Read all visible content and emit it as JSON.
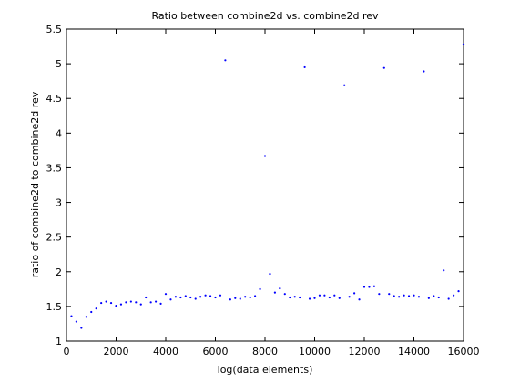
{
  "chart_data": {
    "type": "scatter",
    "title": "Ratio between combine2d vs. combine2d rev",
    "xlabel": "log(data elements)",
    "ylabel": "ratio of combine2d to combine2d rev",
    "xlim": [
      0,
      16000
    ],
    "ylim": [
      1,
      5.5
    ],
    "xticks": [
      0,
      2000,
      4000,
      6000,
      8000,
      10000,
      12000,
      14000,
      16000
    ],
    "yticks": [
      1,
      1.5,
      2,
      2.5,
      3,
      3.5,
      4,
      4.5,
      5,
      5.5
    ],
    "xtick_labels": [
      "0",
      "2000",
      "4000",
      "6000",
      "8000",
      "10000",
      "12000",
      "14000",
      "16000"
    ],
    "ytick_labels": [
      "1",
      "1.5",
      "2",
      "2.5",
      "3",
      "3.5",
      "4",
      "4.5",
      "5",
      "5.5"
    ],
    "grid": false,
    "marker_color": "#0000ff",
    "series": [
      {
        "x": [
          200,
          400,
          600,
          800,
          1000,
          1200,
          1400,
          1600,
          1800,
          2000,
          2200,
          2400,
          2600,
          2800,
          3000,
          3200,
          3400,
          3600,
          3800,
          4000,
          4200,
          4400,
          4600,
          4800,
          5000,
          5200,
          5400,
          5600,
          5800,
          6000,
          6200,
          6400,
          6600,
          6800,
          7000,
          7200,
          7400,
          7600,
          7800,
          8000,
          8200,
          8400,
          8600,
          8800,
          9000,
          9200,
          9400,
          9600,
          9800,
          10000,
          10200,
          10400,
          10600,
          10800,
          11000,
          11200,
          11400,
          11600,
          11800,
          12000,
          12200,
          12400,
          12600,
          12800,
          13000,
          13200,
          13400,
          13600,
          13800,
          14000,
          14200,
          14400,
          14600,
          14800,
          15000,
          15200,
          15400,
          15600,
          15800,
          16000
        ],
        "y": [
          1.36,
          1.28,
          1.19,
          1.35,
          1.42,
          1.47,
          1.55,
          1.57,
          1.55,
          1.51,
          1.53,
          1.56,
          1.57,
          1.56,
          1.53,
          1.63,
          1.56,
          1.57,
          1.54,
          1.68,
          1.6,
          1.64,
          1.63,
          1.65,
          1.63,
          1.61,
          1.64,
          1.66,
          1.65,
          1.63,
          1.66,
          5.05,
          1.6,
          1.62,
          1.61,
          1.64,
          1.63,
          1.65,
          1.75,
          3.67,
          1.97,
          1.7,
          1.76,
          1.68,
          1.63,
          1.64,
          1.63,
          4.95,
          1.61,
          1.62,
          1.66,
          1.66,
          1.63,
          1.66,
          1.62,
          4.69,
          1.64,
          1.69,
          1.6,
          1.78,
          1.78,
          1.79,
          1.68,
          4.94,
          1.68,
          1.65,
          1.64,
          1.66,
          1.65,
          1.66,
          1.64,
          4.89,
          1.62,
          1.65,
          1.63,
          2.02,
          1.61,
          1.66,
          1.72,
          5.28
        ]
      }
    ]
  }
}
